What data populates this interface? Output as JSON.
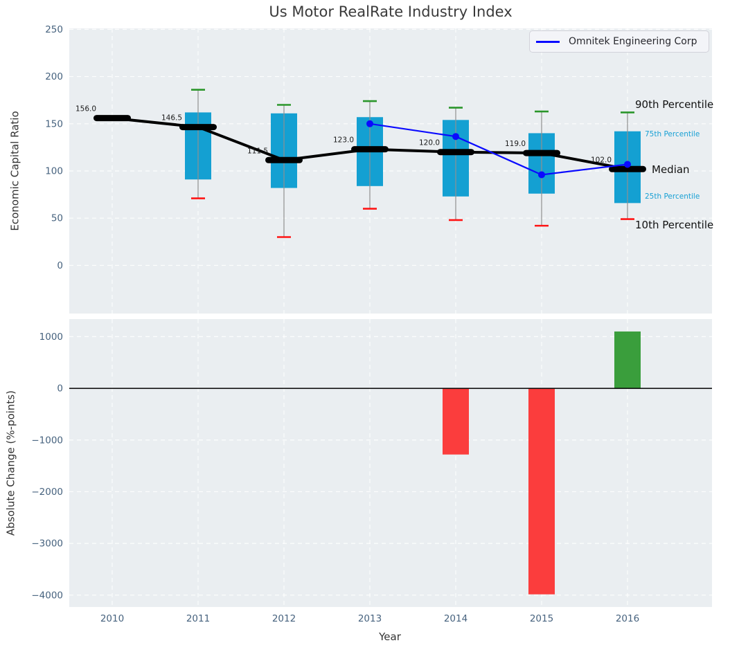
{
  "title": "Us Motor RealRate Industry Index",
  "legend": {
    "label": "Omnitek Engineering Corp"
  },
  "axis_labels": {
    "top_y": "Economic Capital Ratio",
    "bottom_y": "Absolute Change (%-points)",
    "x": "Year"
  },
  "percentile_annotations": {
    "p90": "90th Percentile",
    "p75": "75th Percentile",
    "median": "Median",
    "p25": "25th Percentile",
    "p10": "10th Percentile"
  },
  "colors": {
    "box_fill": "#14a0d2",
    "percentile_label_cyan": "#18a0d4",
    "company_line": "#0a0aff",
    "median_black": "#000000",
    "cap_90": "#2a962a",
    "cap_10": "#ff1414",
    "bar_positive": "#3a9e3c",
    "bar_negative": "#fb3d3d",
    "plot_bg": "#eaeef1",
    "grid_line": "#ffffff",
    "tick_label": "#46627e",
    "whisker": "#8f8f8f",
    "value_label": "#1a1a1a"
  },
  "chart_data": [
    {
      "type": "box",
      "title": "Us Motor RealRate Industry Index",
      "ylabel": "Economic Capital Ratio",
      "ylim": [
        -51,
        251
      ],
      "yticks": [
        250,
        200,
        150,
        100,
        50,
        0
      ],
      "grid": true,
      "legend_position": "upper right",
      "categories": [
        2010,
        2011,
        2012,
        2013,
        2014,
        2015,
        2016
      ],
      "median": [
        156.0,
        146.5,
        111.5,
        123.0,
        120.0,
        119.0,
        102.0
      ],
      "median_labels": [
        "156.0",
        "146.5",
        "111.5",
        "123.0",
        "120.0",
        "119.0",
        "102.0"
      ],
      "p75": [
        null,
        162,
        161,
        157,
        154,
        140,
        142
      ],
      "p25": [
        null,
        91,
        82,
        84,
        73,
        76,
        66
      ],
      "p90": [
        null,
        186,
        170,
        174,
        167,
        163,
        162
      ],
      "p10": [
        null,
        71,
        30,
        60,
        48,
        42,
        49
      ],
      "series": [
        {
          "name": "Omnitek Engineering Corp",
          "x": [
            2013,
            2014,
            2015,
            2016
          ],
          "values": [
            150,
            136.5,
            96,
            107
          ]
        }
      ]
    },
    {
      "type": "bar",
      "ylabel": "Absolute Change (%-points)",
      "xlabel": "Year",
      "ylim": [
        -4230,
        1340
      ],
      "yticks": [
        1000,
        0,
        -1000,
        -2000,
        -3000,
        -4000
      ],
      "grid": true,
      "categories": [
        2010,
        2011,
        2012,
        2013,
        2014,
        2015,
        2016
      ],
      "values": [
        null,
        null,
        null,
        null,
        -1280,
        -3985,
        1100
      ]
    }
  ]
}
